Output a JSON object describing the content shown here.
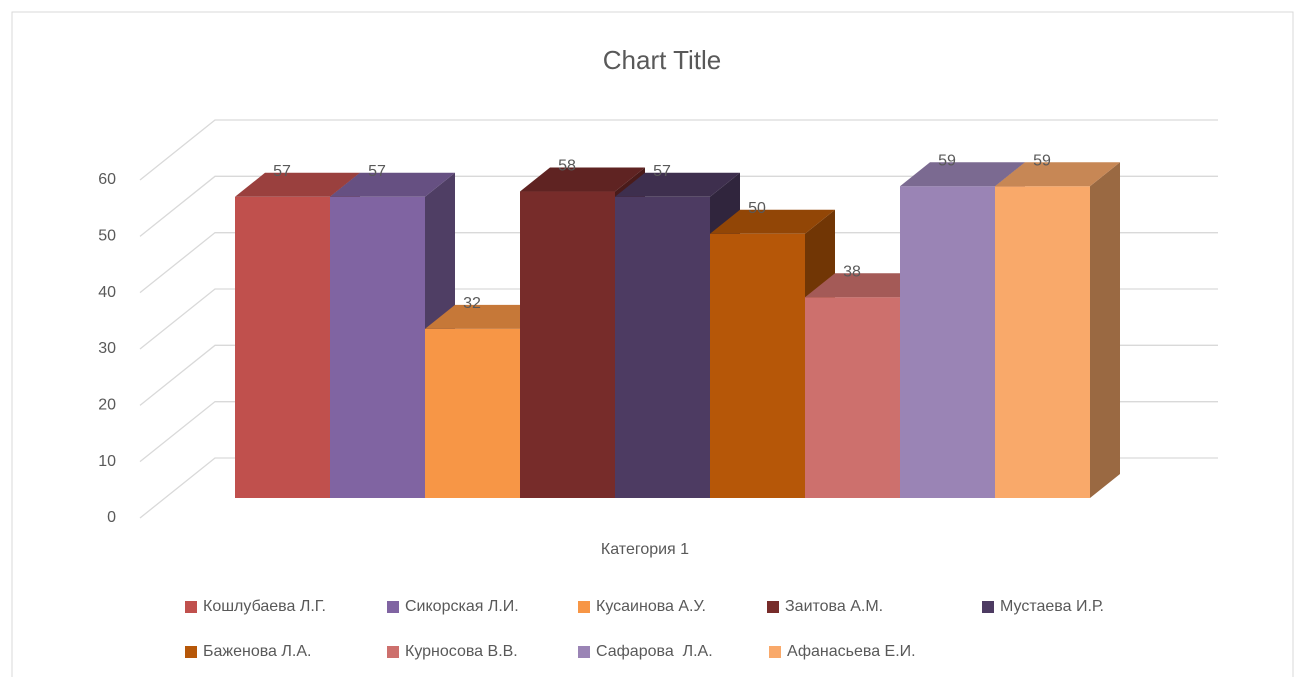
{
  "chart_data": {
    "type": "bar3d",
    "title": "Chart Title",
    "categories": [
      "Категория 1"
    ],
    "series": [
      {
        "name": "Кошлубаева Л.Г.",
        "color": "#C0504D",
        "values": [
          57
        ]
      },
      {
        "name": "Сикорская Л.И.",
        "color": "#8064A2",
        "values": [
          57
        ]
      },
      {
        "name": "Кусаинова А.У.",
        "color": "#F79646",
        "values": [
          32
        ]
      },
      {
        "name": "Заитова А.М.",
        "color": "#772C2A",
        "values": [
          58
        ]
      },
      {
        "name": "Мустаева И.Р.",
        "color": "#4D3B62",
        "values": [
          57
        ]
      },
      {
        "name": "Баженова Л.А.",
        "color": "#B65708",
        "values": [
          50
        ]
      },
      {
        "name": "Курносова В.В.",
        "color": "#CD706D",
        "values": [
          38
        ]
      },
      {
        "name": "Сафарова  Л.А.",
        "color": "#9A84B5",
        "values": [
          59
        ]
      },
      {
        "name": "Афанасьева Е.И.",
        "color": "#F9A96A",
        "values": [
          59
        ]
      }
    ],
    "ylim": [
      0,
      60
    ],
    "yticks": [
      0,
      10,
      20,
      30,
      40,
      50,
      60
    ],
    "grid": true,
    "legend": "bottom"
  }
}
